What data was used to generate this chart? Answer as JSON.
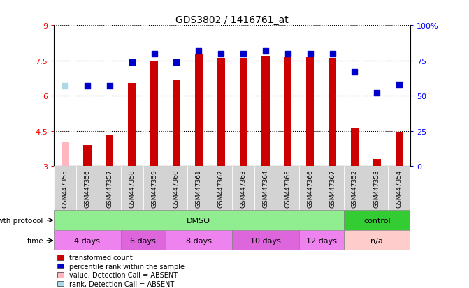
{
  "title": "GDS3802 / 1416761_at",
  "samples": [
    "GSM447355",
    "GSM447356",
    "GSM447357",
    "GSM447358",
    "GSM447359",
    "GSM447360",
    "GSM447361",
    "GSM447362",
    "GSM447363",
    "GSM447364",
    "GSM447365",
    "GSM447366",
    "GSM447367",
    "GSM447352",
    "GSM447353",
    "GSM447354"
  ],
  "transformed_count": [
    4.05,
    3.9,
    4.35,
    6.55,
    7.45,
    6.65,
    7.75,
    7.6,
    7.6,
    7.7,
    7.65,
    7.65,
    7.6,
    4.6,
    3.3,
    4.45
  ],
  "percentile_rank_pct": [
    57,
    57,
    57,
    74,
    80,
    74,
    82,
    80,
    80,
    82,
    80,
    80,
    80,
    67,
    52,
    58
  ],
  "absent_count": [
    true,
    false,
    false,
    false,
    false,
    false,
    false,
    false,
    false,
    false,
    false,
    false,
    false,
    false,
    false,
    false
  ],
  "absent_rank": [
    true,
    false,
    false,
    false,
    false,
    false,
    false,
    false,
    false,
    false,
    false,
    false,
    false,
    false,
    false,
    false
  ],
  "bar_color": "#cc0000",
  "absent_bar_color": "#ffb6c1",
  "dot_color": "#0000cc",
  "absent_dot_color": "#add8e6",
  "ylim_left": [
    3,
    9
  ],
  "ylim_right": [
    0,
    100
  ],
  "yticks_left": [
    3,
    4.5,
    6,
    7.5,
    9
  ],
  "yticks_right": [
    0,
    25,
    50,
    75,
    100
  ],
  "ytick_labels_left": [
    "3",
    "4.5",
    "6",
    "7.5",
    "9"
  ],
  "ytick_labels_right": [
    "0",
    "25",
    "50",
    "75",
    "100%"
  ],
  "groups": [
    {
      "label": "DMSO",
      "start": 0,
      "end": 12,
      "color": "#90EE90"
    },
    {
      "label": "control",
      "start": 13,
      "end": 15,
      "color": "#33cc33"
    }
  ],
  "time_groups": [
    {
      "label": "4 days",
      "start": 0,
      "end": 2,
      "color": "#ee82ee"
    },
    {
      "label": "6 days",
      "start": 3,
      "end": 4,
      "color": "#dd66dd"
    },
    {
      "label": "8 days",
      "start": 5,
      "end": 7,
      "color": "#ee82ee"
    },
    {
      "label": "10 days",
      "start": 8,
      "end": 10,
      "color": "#dd66dd"
    },
    {
      "label": "12 days",
      "start": 11,
      "end": 12,
      "color": "#ee82ee"
    },
    {
      "label": "n/a",
      "start": 13,
      "end": 15,
      "color": "#ffcccc"
    }
  ],
  "growth_protocol_label": "growth protocol",
  "time_label": "time",
  "legend_items": [
    {
      "label": "transformed count",
      "color": "#cc0000"
    },
    {
      "label": "percentile rank within the sample",
      "color": "#0000cc"
    },
    {
      "label": "value, Detection Call = ABSENT",
      "color": "#ffb6c1"
    },
    {
      "label": "rank, Detection Call = ABSENT",
      "color": "#add8e6"
    }
  ],
  "bar_width": 0.35,
  "dot_size": 40
}
